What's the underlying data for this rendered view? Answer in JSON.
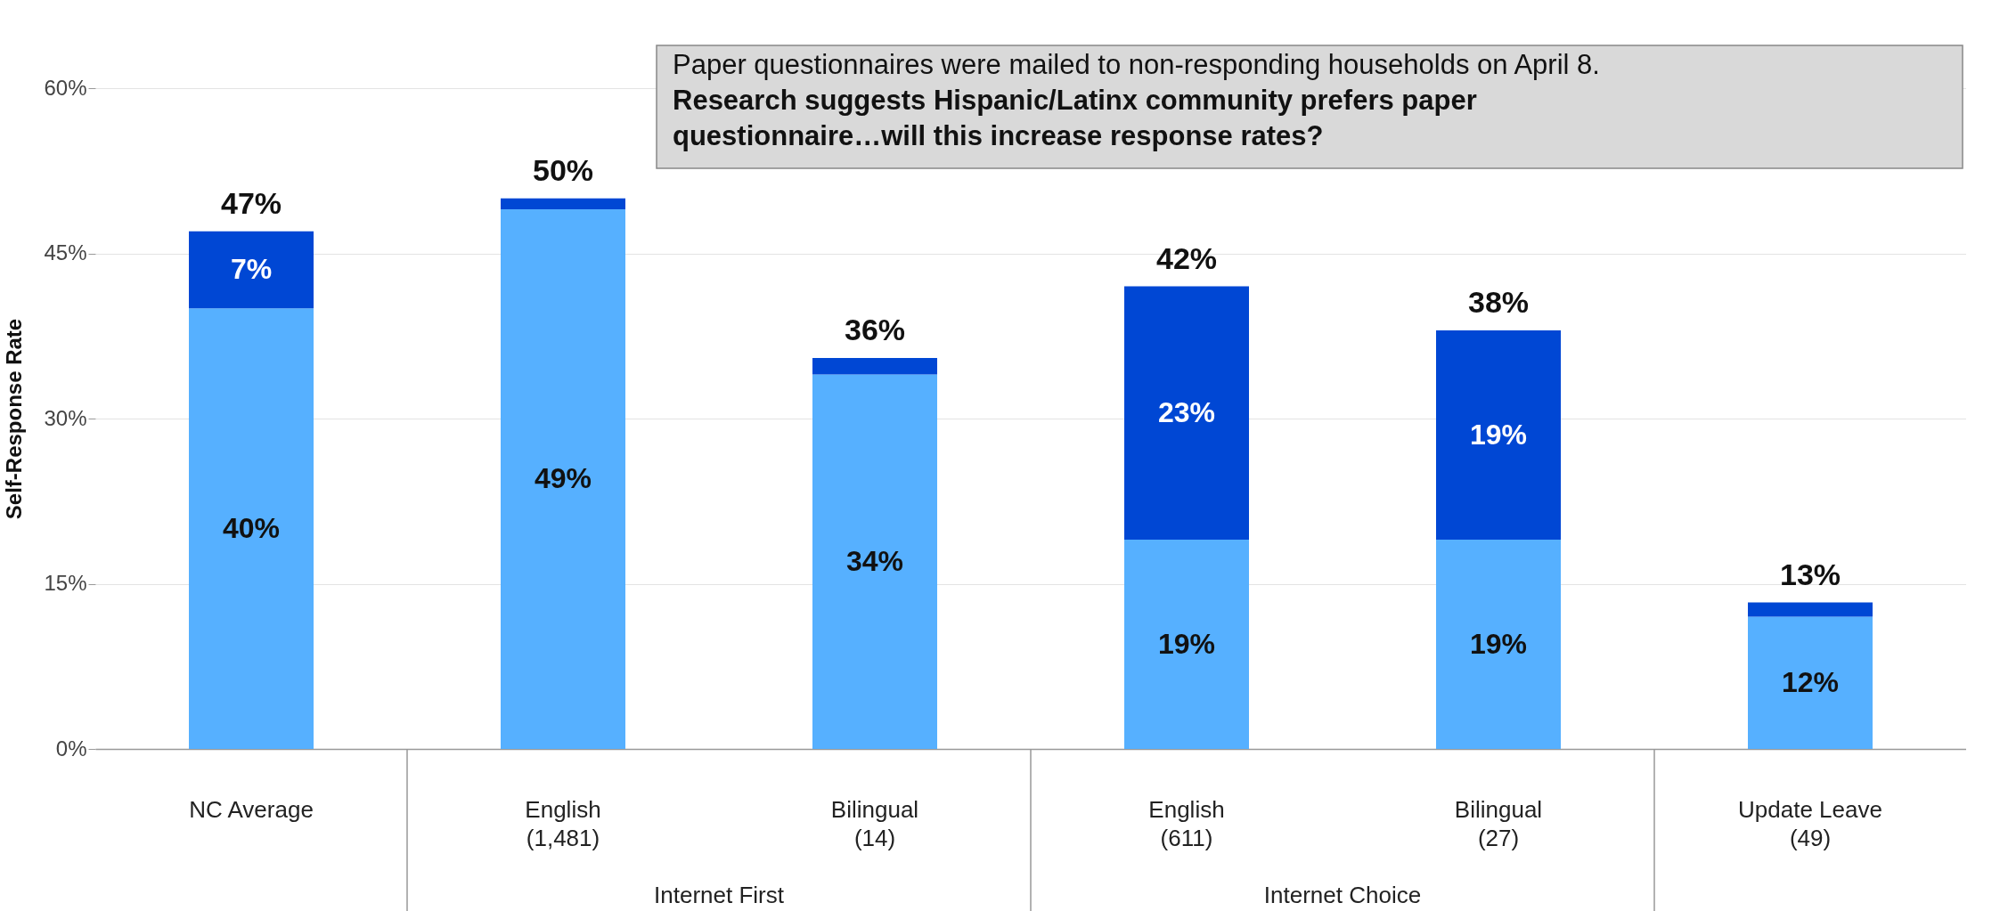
{
  "chart_data": {
    "type": "bar",
    "stacked": true,
    "ylabel": "Self-Response Rate",
    "categories": [
      "NC Average",
      "English\n(1,481)",
      "Bilingual\n(14)",
      "English\n(611)",
      "Bilingual\n(27)",
      "Update Leave\n(49)"
    ],
    "series": [
      {
        "color": "#56b0ff",
        "values": [
          40,
          49,
          34,
          19,
          19,
          12
        ],
        "value_labels": [
          "40%",
          "49%",
          "34%",
          "19%",
          "19%",
          "12%"
        ]
      },
      {
        "color": "#0047d4",
        "values": [
          7,
          1,
          1.5,
          23,
          19,
          1.3
        ],
        "value_labels": [
          "7%",
          null,
          null,
          "23%",
          "19%",
          null
        ]
      }
    ],
    "totals": [
      "47%",
      "50%",
      "36%",
      "42%",
      "38%",
      "13%"
    ],
    "ylim": [
      0,
      60
    ],
    "yticks": [
      {
        "value": 0,
        "label": "0%"
      },
      {
        "value": 15,
        "label": "15%"
      },
      {
        "value": 30,
        "label": "30%"
      },
      {
        "value": 45,
        "label": "45%"
      },
      {
        "value": 60,
        "label": "60%"
      }
    ],
    "grid": "y",
    "annotations": [
      "Paper questionnaires were mailed to non-responding households on April 8.",
      "Research suggests Hispanic/Latinx community prefers paper questionnaire…will this increase response rates?",
      "Internet First",
      "Internet Choice"
    ]
  }
}
